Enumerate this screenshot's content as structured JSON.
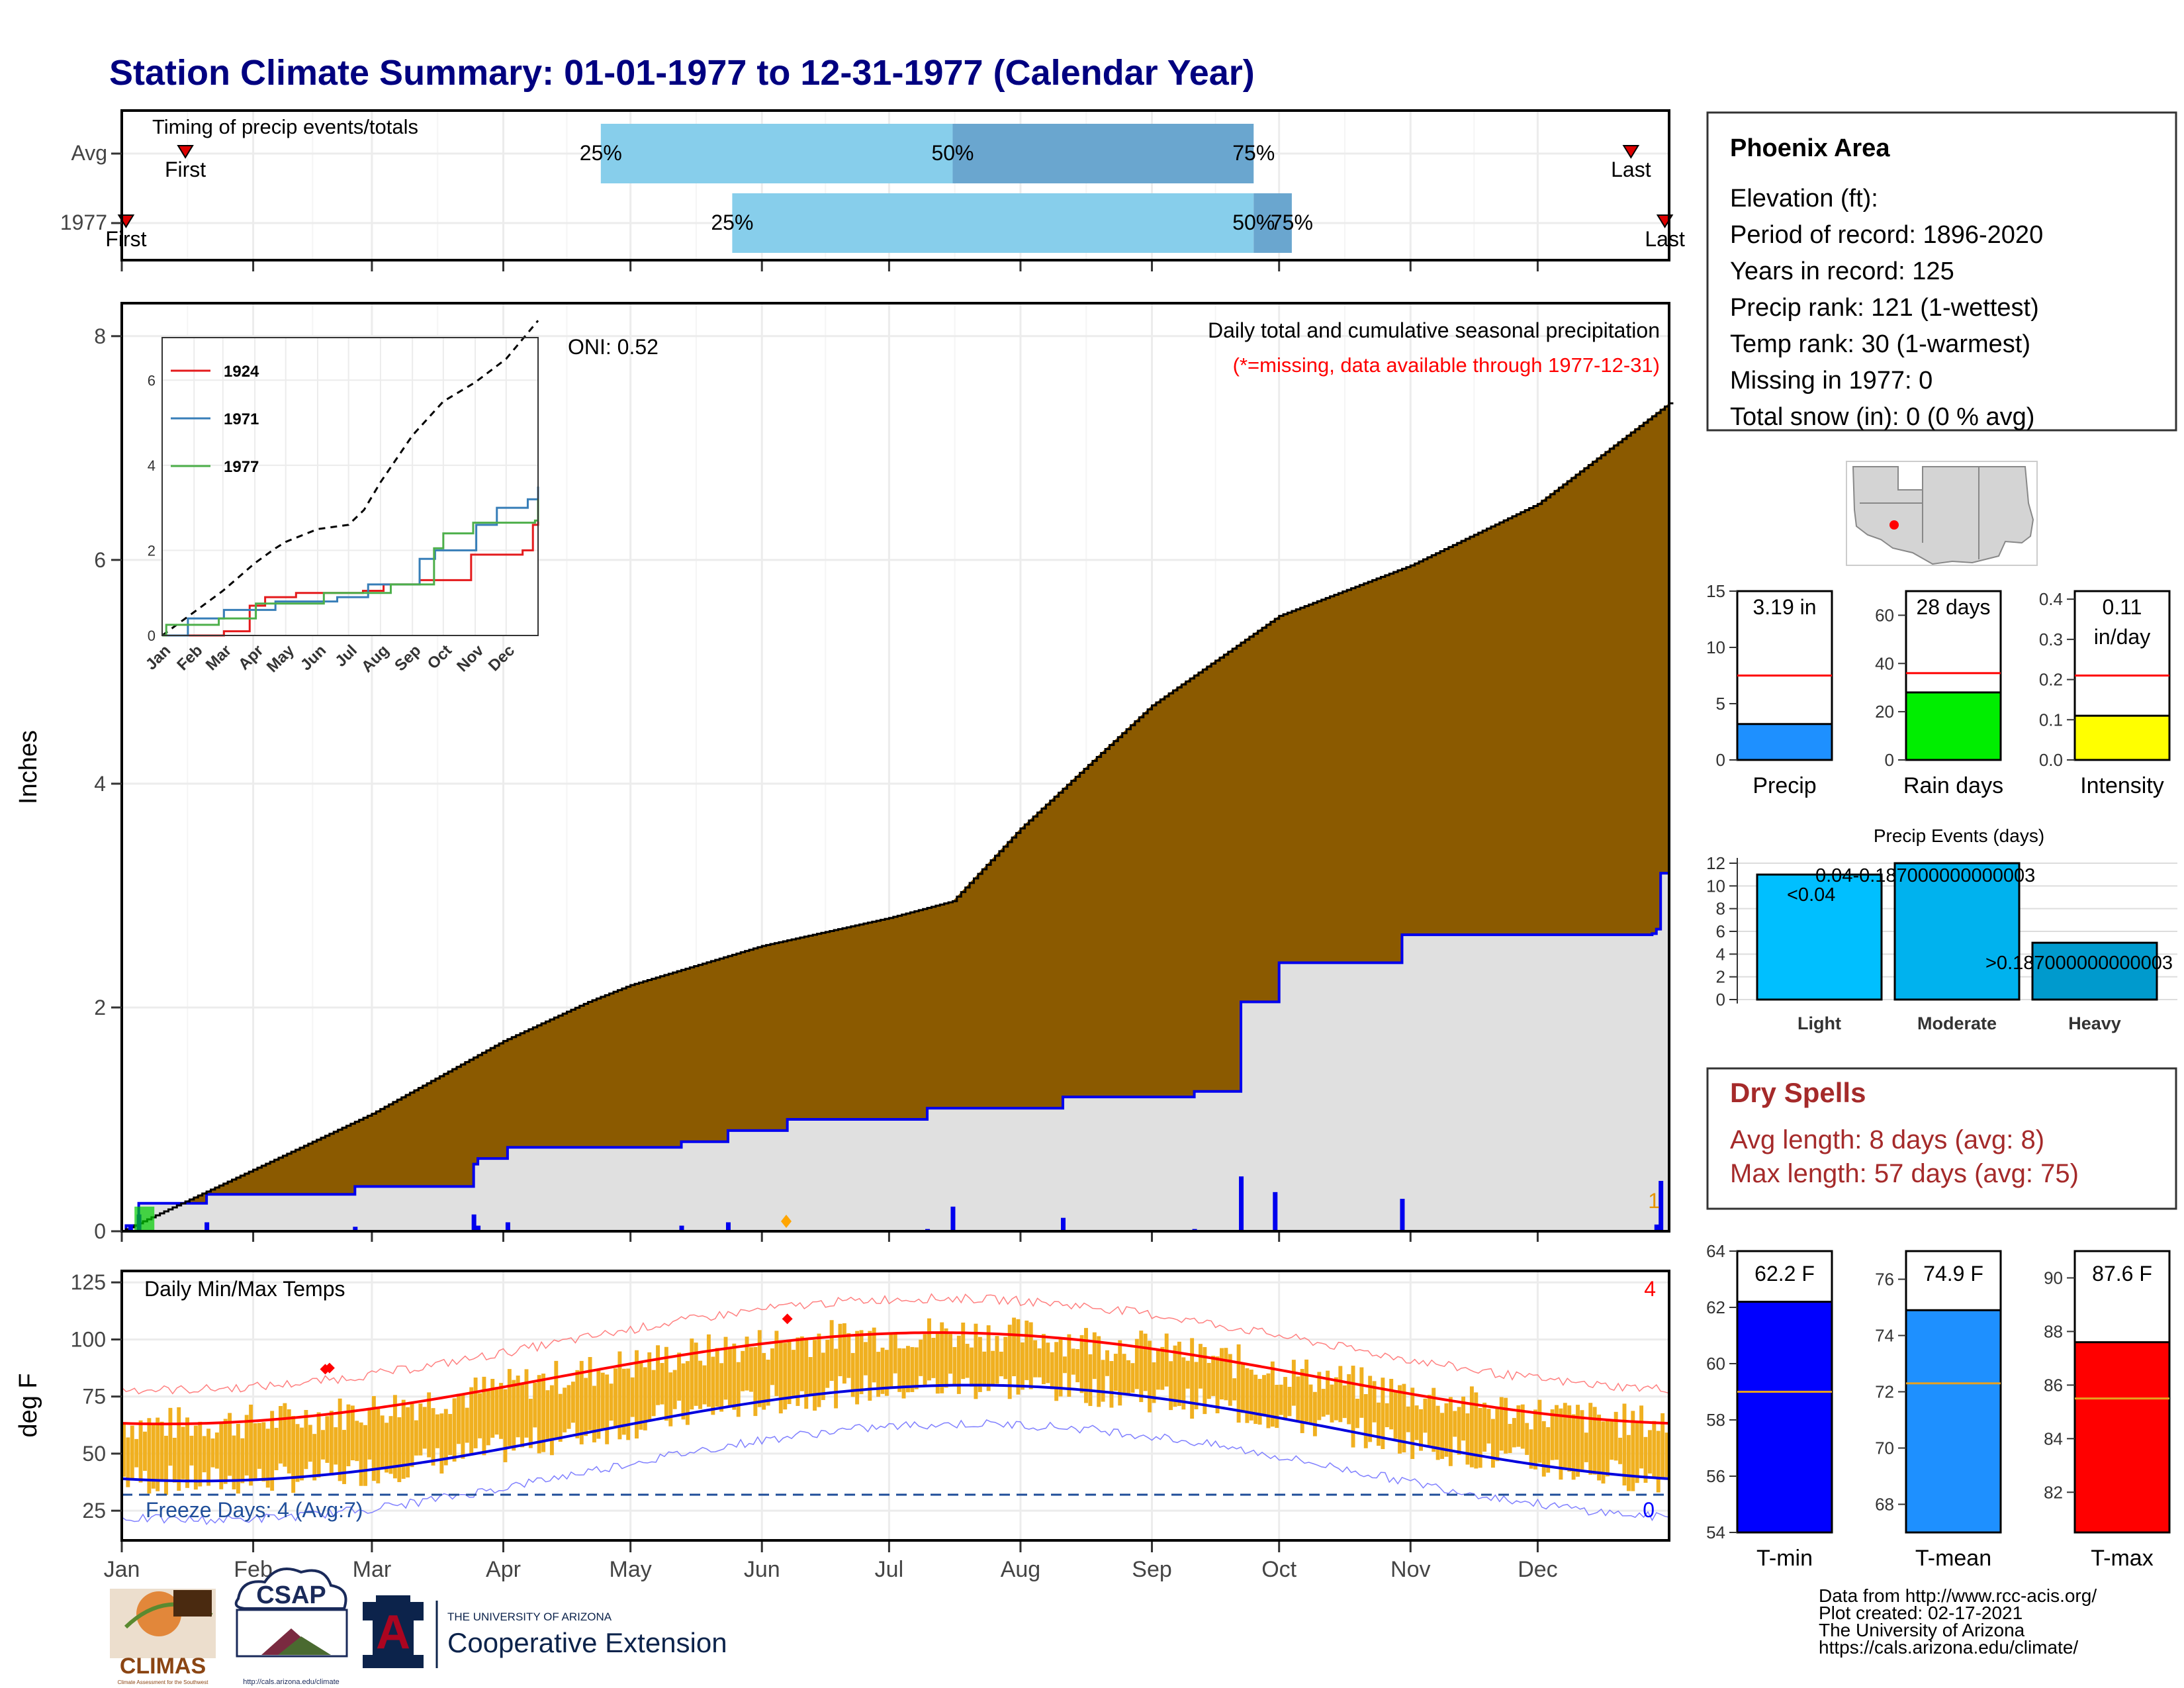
{
  "title": "Station Climate Summary: 01-01-1977 to 12-31-1977 (Calendar Year)",
  "months": [
    "Jan",
    "Feb",
    "Mar",
    "Apr",
    "May",
    "Jun",
    "Jul",
    "Aug",
    "Sep",
    "Oct",
    "Nov",
    "Dec"
  ],
  "timing": {
    "label": "Timing of precip events/totals",
    "rows": [
      {
        "label": "Avg",
        "first_day": 15,
        "last_day": 356,
        "p25_day": 113,
        "p50_day": 196,
        "p75_day": 267,
        "first_label": "First",
        "last_label": "Last",
        "p25_label": "25%",
        "p50_label": "50%",
        "p75_label": "75%"
      },
      {
        "label": "1977",
        "first_day": 1,
        "last_day": 364,
        "p25_day": 144,
        "p50_day": 267,
        "p75_day": 276,
        "first_label": "First",
        "last_label": "Last",
        "p25_label": "25%",
        "p50_label": "50%",
        "p75_label": "75%"
      }
    ],
    "colors": {
      "light": "#87ceeb",
      "dark": "#6aa6cf",
      "marker": "#dd0000"
    }
  },
  "precip": {
    "ylabel": "Inches",
    "yticks": [
      0,
      2,
      4,
      6,
      8
    ],
    "annotation_title": "Daily total and cumulative seasonal precipitation",
    "annotation_missing": "(*=missing, data available through 1977-12-31)",
    "oni_label": "ONI: 0.52",
    "right_count": "1",
    "colors": {
      "avg_fill": "#8b5a00",
      "obs_fill": "#e0e0e0",
      "obs_line": "#0000ee",
      "missing_marker": "#ffa500"
    }
  },
  "inset": {
    "yticks": [
      0,
      2,
      4,
      6
    ],
    "legend": [
      {
        "name": "1924",
        "color": "#e41a1c"
      },
      {
        "name": "1971",
        "color": "#377eb8"
      },
      {
        "name": "1977",
        "color": "#4daf4a"
      }
    ]
  },
  "temps": {
    "title": "Daily Min/Max Temps",
    "ylabel": "deg F",
    "yticks": [
      25,
      50,
      75,
      100,
      125
    ],
    "freeze_label": "Freeze Days: 4 (Avg:7)",
    "count_high": "4",
    "count_low": "0",
    "freeze_line": 32,
    "colors": {
      "bar": "#f0b020",
      "avg_max": "#ff0000",
      "avg_min": "#0000dd",
      "rec_max": "#ff8080",
      "rec_min": "#8080ff",
      "freeze": "#1f4e99"
    }
  },
  "info": {
    "station": "Phoenix Area",
    "lines": [
      "Elevation (ft):",
      "Period of record: 1896-2020",
      "Years in record: 125",
      "Precip rank: 121 (1-wettest)",
      "Temp rank: 30 (1-warmest)",
      "Missing in 1977: 0",
      "Total snow (in): 0 (0 % avg)"
    ]
  },
  "summary_bars": [
    {
      "label": "Precip",
      "value": 3.19,
      "avg": 7.5,
      "ylim": [
        0,
        15
      ],
      "ticks": [
        0,
        5,
        10,
        15
      ],
      "value_label": "3.19 in",
      "color": "#1e90ff"
    },
    {
      "label": "Rain days",
      "value": 28,
      "avg": 36,
      "ylim": [
        0,
        70
      ],
      "ticks": [
        0,
        20,
        40,
        60
      ],
      "value_label": "28 days",
      "color": "#00ee00"
    },
    {
      "label": "Intensity",
      "value": 0.11,
      "avg": 0.21,
      "ylim": [
        0,
        0.42
      ],
      "ticks": [
        0.0,
        0.1,
        0.2,
        0.3,
        0.4
      ],
      "value_label": "0.11",
      "value_label2": "in/day",
      "color": "#ffff00"
    }
  ],
  "chart_data": [
    {
      "type": "bar",
      "title": "Precip Events (days)",
      "categories": [
        "Light",
        "Moderate",
        "Heavy"
      ],
      "values": [
        11,
        12,
        5
      ],
      "ylim": [
        0,
        12
      ],
      "yticks": [
        0,
        2,
        4,
        6,
        8,
        10,
        12
      ],
      "bar_labels": [
        "<0.04",
        "0.04-0.187000000000003",
        ">0.187000000000003"
      ],
      "colors": [
        "#00bfff",
        "#00b2ee",
        "#009acd"
      ]
    },
    {
      "type": "bar",
      "title": "",
      "categories": [
        "T-min",
        "T-mean",
        "T-max"
      ],
      "values": [
        62.2,
        74.9,
        87.6
      ],
      "value_labels": [
        "62.2 F",
        "74.9 F",
        "87.6 F"
      ],
      "averages": [
        59.0,
        72.3,
        85.5
      ],
      "panels": [
        {
          "ylim": [
            54,
            64
          ],
          "ticks": [
            54,
            56,
            58,
            60,
            62,
            64
          ],
          "color": "#0000ff"
        },
        {
          "ylim": [
            67,
            77
          ],
          "ticks": [
            68,
            70,
            72,
            74,
            76
          ],
          "color": "#1e90ff"
        },
        {
          "ylim": [
            80.5,
            91
          ],
          "ticks": [
            82,
            84,
            86,
            88,
            90
          ],
          "color": "#ff0000"
        }
      ]
    }
  ],
  "dry_spells": {
    "title": "Dry Spells",
    "avg": "Avg length: 8 days (avg: 8)",
    "max": "Max length: 57 days (avg: 75)",
    "color": "#a52a2a"
  },
  "credits": [
    "Data from http://www.rcc-acis.org/",
    "Plot created: 02-17-2021",
    "The University of Arizona",
    "https://cals.arizona.edu/climate/"
  ],
  "logos": {
    "climas": "CLIMAS",
    "climas_sub": "Climate Assessment for the Southwest",
    "csap": "CSAP",
    "csap_url": "http://cals.arizona.edu/climate",
    "ua_small": "THE UNIVERSITY OF ARIZONA",
    "ua_big": "Cooperative Extension",
    "ua_mark": "A"
  }
}
